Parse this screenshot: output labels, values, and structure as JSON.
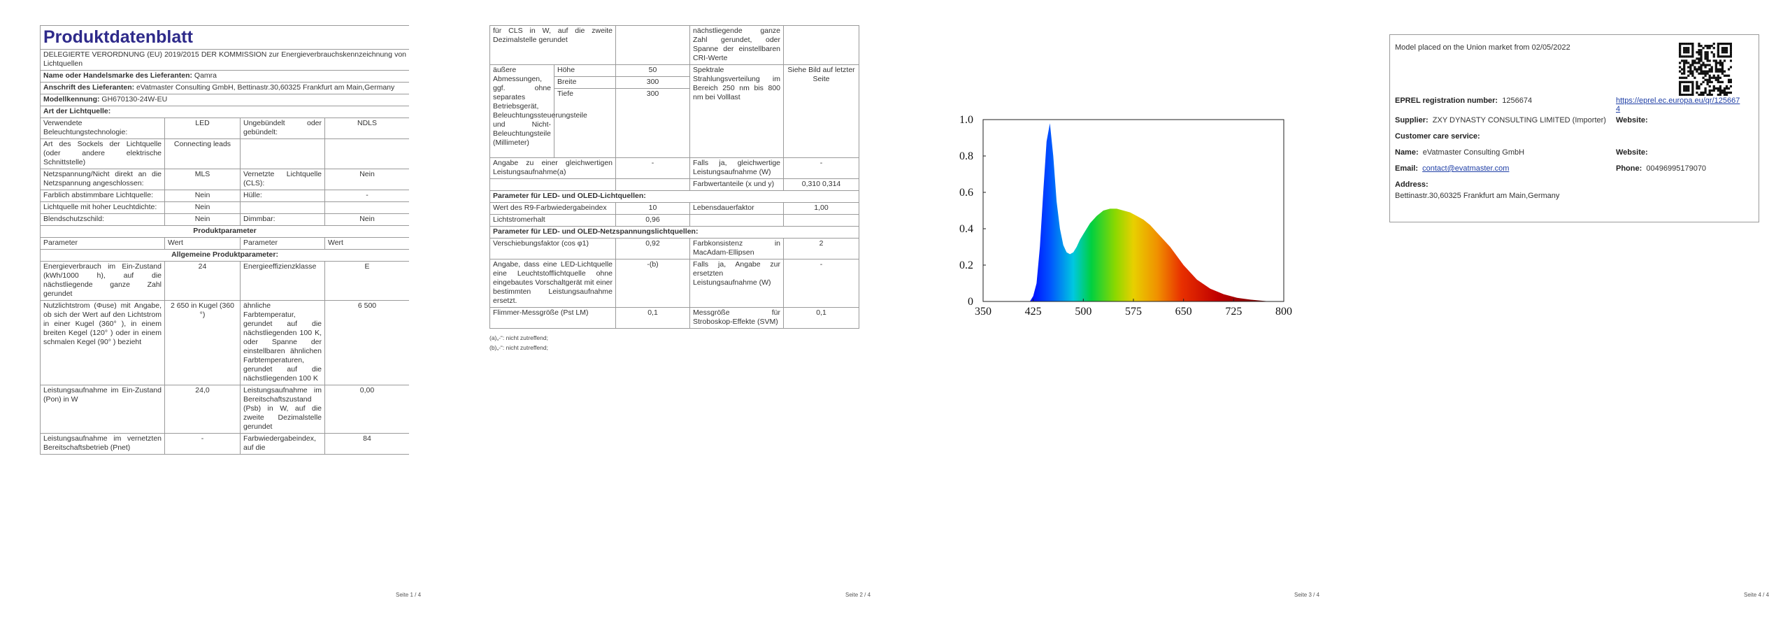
{
  "page1": {
    "title": "Produktdatenblatt",
    "regulation": "DELEGIERTE VERORDNUNG (EU) 2019/2015 DER KOMMISSION zur Energieverbrauchskennzeichnung von Lichtquellen",
    "supplier_info": [
      {
        "label": "Name oder Handelsmarke des Lieferanten:",
        "value": "Qamra"
      },
      {
        "label": "Anschrift des Lieferanten:",
        "value": "eVatmaster Consulting GmbH, Bettinastr.30,60325 Frankfurt am Main,Germany"
      },
      {
        "label": "Modellkennung:",
        "value": "GH670130-24W-EU"
      }
    ],
    "light_source_heading": "Art der Lichtquelle:",
    "light_source_rows": [
      [
        "Verwendete Beleuchtungstechnologie:",
        "LED",
        "Ungebündelt oder gebündelt:",
        "NDLS"
      ],
      [
        "Art des Sockels der Lichtquelle (oder andere elektrische Schnittstelle)",
        "Connecting leads",
        null,
        null
      ],
      [
        "Netzspannung/Nicht direkt an die Netzspannung angeschlossen:",
        "MLS",
        "Vernetzte Lichtquelle (CLS):",
        "Nein"
      ],
      [
        "Farblich abstimmbare Lichtquelle:",
        "Nein",
        "Hülle:",
        "-"
      ],
      [
        "Lichtquelle mit hoher Leuchtdichte:",
        "Nein",
        null,
        null
      ],
      [
        "Blendschutzschild:",
        "Nein",
        "Dimmbar:",
        "Nein"
      ]
    ],
    "params_heading": "Produktparameter",
    "params_header": [
      "Parameter",
      "Wert",
      "Parameter",
      "Wert"
    ],
    "general_heading": "Allgemeine Produktparameter:",
    "general_rows": [
      [
        "Energieverbrauch im Ein-Zustand (kWh/1000 h), auf die nächstliegende ganze Zahl gerundet",
        "24",
        "Energieeffizienzklasse",
        "E"
      ],
      [
        "Nutzlichtstrom (Φuse) mit Angabe, ob sich der Wert auf den Lichtstrom in einer Kugel (360° ), in einem breiten Kegel (120° ) oder in einem schmalen Kegel (90° ) bezieht",
        "2 650 in Kugel (360 °)",
        "ähnliche Farbtemperatur, gerundet auf die nächstliegenden 100 K, oder Spanne der einstellbaren ähnlichen Farbtemperaturen, gerundet auf die nächstliegenden 100 K",
        "6 500"
      ],
      [
        "Leistungsaufnahme im Ein-Zustand (Pon) in W",
        "24,0",
        "Leistungsaufnahme im Bereitschaftszustand (Psb) in W, auf die zweite Dezimalstelle gerundet",
        "0,00"
      ],
      [
        "Leistungsaufnahme im vernetzten Bereitschaftsbetrieb (Pnet)",
        "-",
        "Farbwiedergabeindex, auf die",
        "84"
      ]
    ],
    "page_number": "Seite 1 / 4"
  },
  "page2": {
    "continued_row": [
      "für CLS in W, auf die zweite Dezimalstelle gerundet",
      null,
      "nächstliegende ganze Zahl gerundet, oder Spanne der einstellbaren CRI-Werte",
      null
    ],
    "dimensions": {
      "label": "äußere Abmessungen, ggf. ohne separates Betriebsgerät, Beleuchtungssteuerungsteile und Nicht-Beleuchtungsteile (Millimeter)",
      "items": [
        {
          "name": "Höhe",
          "value": "50"
        },
        {
          "name": "Breite",
          "value": "300"
        },
        {
          "name": "Tiefe",
          "value": "300"
        }
      ],
      "parameter": "Spektrale Strahlungsverteilung im Bereich 250 nm bis 800 nm bei Volllast",
      "value": "Siehe Bild auf letzter Seite"
    },
    "rows": [
      [
        "Angabe zu einer gleichwertigen Leistungsaufnahme(a)",
        "-",
        "Falls ja, gleichwertige Leistungsaufnahme (W)",
        "-"
      ],
      [
        null,
        null,
        "Farbwertanteile (x und y)",
        "0,310 0,314"
      ]
    ],
    "led_heading": "Parameter für LED- und OLED-Lichtquellen:",
    "led_rows": [
      [
        "Wert des R9-Farbwiedergabeindex",
        "10",
        "Lebensdauerfaktor",
        "1,00"
      ],
      [
        "Lichtstromerhalt",
        "0,96",
        null,
        null
      ]
    ],
    "mains_heading": "Parameter für LED- und OLED-Netzspannungslichtquellen:",
    "mains_rows": [
      [
        "Verschiebungsfaktor (cos φ1)",
        "0,92",
        "Farbkonsistenz in MacAdam-Ellipsen",
        "2"
      ],
      [
        "Angabe, dass eine LED-Lichtquelle eine Leuchtstofflichtquelle ohne eingebautes Vorschaltgerät mit einer bestimmten Leistungsaufnahme ersetzt.",
        "-(b)",
        "Falls ja, Angabe zur ersetzten Leistungsaufnahme (W)",
        "-"
      ],
      [
        "Flimmer-Messgröße (Pst LM)",
        "0,1",
        "Messgröße für Stroboskop-Effekte (SVM)",
        "0,1"
      ]
    ],
    "footnotes": [
      "(a)„-“: nicht zutreffend;",
      "(b)„-“: nicht zutreffend;"
    ],
    "page_number": "Seite 2 / 4"
  },
  "page3": {
    "chart_data": {
      "type": "area",
      "x": [
        420,
        425,
        430,
        435,
        440,
        445,
        450,
        455,
        460,
        465,
        470,
        475,
        480,
        485,
        490,
        495,
        500,
        510,
        520,
        530,
        540,
        550,
        560,
        570,
        580,
        590,
        600,
        610,
        620,
        630,
        650,
        670,
        690,
        710,
        730,
        750,
        765,
        780
      ],
      "values": [
        0,
        0.03,
        0.1,
        0.3,
        0.6,
        0.88,
        0.98,
        0.8,
        0.55,
        0.4,
        0.31,
        0.27,
        0.26,
        0.27,
        0.3,
        0.34,
        0.37,
        0.43,
        0.47,
        0.5,
        0.51,
        0.51,
        0.5,
        0.49,
        0.47,
        0.45,
        0.42,
        0.38,
        0.34,
        0.3,
        0.2,
        0.12,
        0.07,
        0.04,
        0.02,
        0.01,
        0.005,
        0
      ],
      "xlim": [
        350,
        800
      ],
      "ylim": [
        0,
        1
      ],
      "xticks": [
        350,
        425,
        500,
        575,
        650,
        725,
        800
      ],
      "yticks": [
        0,
        0.2,
        0.4,
        0.6,
        0.8,
        {
          "value": 1,
          "label": "1.0"
        }
      ]
    },
    "page_number": "Seite 3 / 4"
  },
  "page4": {
    "market": "Model placed on the Union market from 02/05/2022",
    "eprel": {
      "label": "EPREL registration number:",
      "value": "1256674",
      "link": "https://eprel.ec.europa.eu/qr/1256674"
    },
    "supplier": {
      "label": "Supplier:",
      "value": "ZXY DYNASTY CONSULTING LIMITED (Importer)"
    },
    "supplier_website": {
      "label": "Website:"
    },
    "customer_care": "Customer care service:",
    "name": {
      "label": "Name:",
      "value": "eVatmaster Consulting GmbH"
    },
    "care_website": {
      "label": "Website:"
    },
    "email": {
      "label": "Email:",
      "value": "contact@evatmaster.com"
    },
    "phone": {
      "label": "Phone:",
      "value": "00496995179070"
    },
    "address": {
      "label": "Address:",
      "value": "Bettinastr.30,60325 Frankfurt am Main,Germany"
    },
    "page_number": "Seite 4 / 4"
  }
}
